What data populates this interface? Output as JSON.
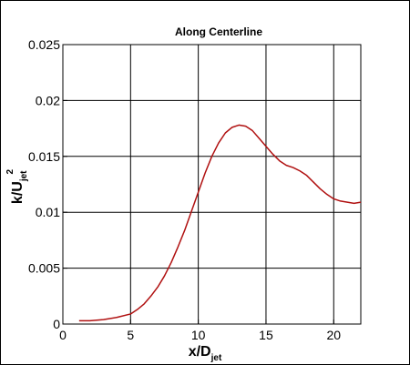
{
  "chart_data": {
    "type": "line",
    "title": "Along Centerline",
    "xlabel": {
      "main": "x/D",
      "sub": "jet"
    },
    "ylabel": {
      "main": "k/U",
      "sub": "jet",
      "sup": "2"
    },
    "xlim": [
      0,
      22
    ],
    "ylim": [
      0,
      0.025
    ],
    "xticks": [
      0,
      5,
      10,
      15,
      20
    ],
    "yticks": [
      0,
      0.005,
      0.01,
      0.015,
      0.02,
      0.025
    ],
    "xtick_labels": [
      "0",
      "5",
      "10",
      "15",
      "20"
    ],
    "ytick_labels": [
      "0",
      "0.005",
      "0.01",
      "0.015",
      "0.02",
      "0.025"
    ],
    "grid": true,
    "line_color": "#b01010",
    "series": [
      {
        "x": [
          1.2,
          2,
          3,
          4,
          5,
          5.5,
          6,
          6.5,
          7,
          7.5,
          8,
          8.5,
          9,
          9.5,
          10,
          10.5,
          11,
          11.5,
          12,
          12.5,
          13,
          13.5,
          14,
          14.5,
          15,
          15.5,
          16,
          16.5,
          17,
          17.5,
          18,
          18.5,
          19,
          19.5,
          20,
          20.5,
          21,
          21.5,
          22
        ],
        "y": [
          0.0003,
          0.0003,
          0.0004,
          0.0006,
          0.0009,
          0.0013,
          0.0018,
          0.0025,
          0.0033,
          0.0043,
          0.0055,
          0.0069,
          0.0084,
          0.0101,
          0.0118,
          0.0135,
          0.015,
          0.0162,
          0.0171,
          0.0176,
          0.0178,
          0.0177,
          0.0173,
          0.0166,
          0.0159,
          0.0152,
          0.0146,
          0.0142,
          0.014,
          0.0137,
          0.0133,
          0.0127,
          0.0121,
          0.0116,
          0.0112,
          0.011,
          0.0109,
          0.0108,
          0.0109
        ]
      }
    ]
  }
}
